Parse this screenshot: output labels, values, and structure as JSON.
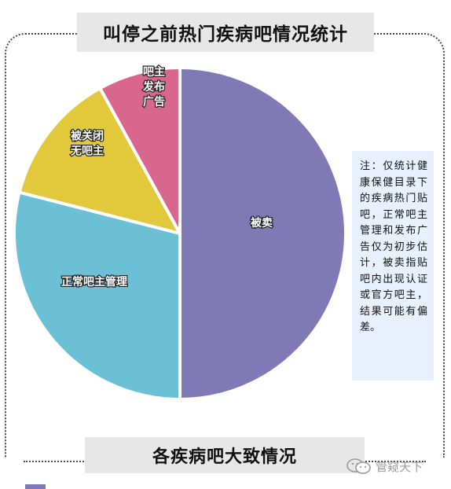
{
  "title": "叫停之前热门疾病吧情况统计",
  "subtitle": "各疾病吧大致情况",
  "note": "注：仅统计健康保健目录下的疾病热门贴吧，正常吧主管理和发布广告仅为初步估计，被卖指贴吧内出现认证或官方吧主，结果可能有偏差。",
  "watermark": "管窥天下",
  "chart_data": {
    "type": "pie",
    "title": "叫停之前热门疾病吧情况统计",
    "slices": [
      {
        "label": "被卖",
        "value": 50,
        "color": "#7f7ab6"
      },
      {
        "label": "正常吧主管理",
        "value": 29,
        "color": "#6cc0d6"
      },
      {
        "label": "被关闭无吧主",
        "value": 13,
        "color": "#e2c93c"
      },
      {
        "label": "吧主发布广告",
        "value": 8,
        "color": "#d8668d"
      }
    ],
    "start_angle_deg": 0,
    "direction": "clockwise"
  }
}
